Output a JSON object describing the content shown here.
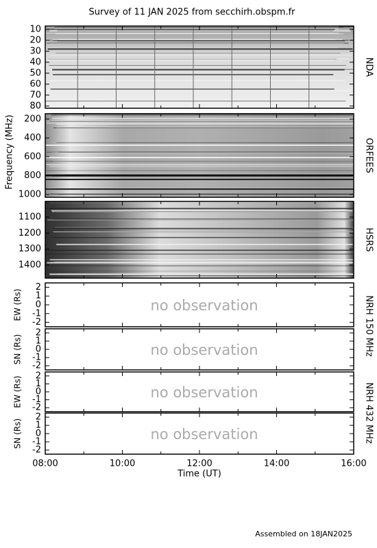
{
  "title": "Survey of 11 JAN 2025 from secchirh.obspm.fr",
  "ylabel": "Frequency (MHz)",
  "xlabel": "Time (UT)",
  "footer": "Assembled on  18JAN2025",
  "xlim": [
    8,
    16
  ],
  "xticks": [
    {
      "value": 8,
      "label": "08:00"
    },
    {
      "value": 10,
      "label": "10:00"
    },
    {
      "value": 12,
      "label": "12:00"
    },
    {
      "value": 14,
      "label": "14:00"
    },
    {
      "value": 16,
      "label": "16:00"
    }
  ],
  "xminorticks": [
    9,
    11,
    13,
    15
  ],
  "chart_data": [
    {
      "type": "spectrogram",
      "name": "NDA",
      "ylim": [
        7,
        82
      ],
      "yticks": [
        10,
        20,
        30,
        40,
        50,
        60,
        70,
        80
      ]
    },
    {
      "type": "spectrogram",
      "name": "ORFEES",
      "ylim": [
        143,
        1029
      ],
      "yticks": [
        200,
        400,
        600,
        800,
        1000
      ]
    },
    {
      "type": "spectrogram",
      "name": "HSRS",
      "ylim": [
        1002,
        1481
      ],
      "yticks": [
        1100,
        1200,
        1300,
        1400
      ]
    },
    {
      "type": "empty",
      "name": "NRH 150 MHz",
      "ylabel": "EW (Rs)",
      "annotation": "no observation",
      "ylim": [
        2.5,
        -2.5
      ],
      "yticks": [
        2,
        1,
        0,
        -1,
        -2
      ]
    },
    {
      "type": "empty",
      "ylabel": "SN (Rs)",
      "annotation": "no observation",
      "ylim": [
        2.5,
        -2.5
      ],
      "yticks": [
        2,
        1,
        0,
        -1,
        -2
      ]
    },
    {
      "type": "empty",
      "name": "NRH 432 MHz",
      "ylabel": "EW (Rs)",
      "annotation": "no observation",
      "ylim": [
        2.5,
        -2.5
      ],
      "yticks": [
        2,
        1,
        0,
        -1,
        -2
      ]
    },
    {
      "type": "empty",
      "ylabel": "SN (Rs)",
      "annotation": "no observation",
      "ylim": [
        2.5,
        -2.5
      ],
      "yticks": [
        2,
        1,
        0,
        -1,
        -2
      ]
    }
  ]
}
